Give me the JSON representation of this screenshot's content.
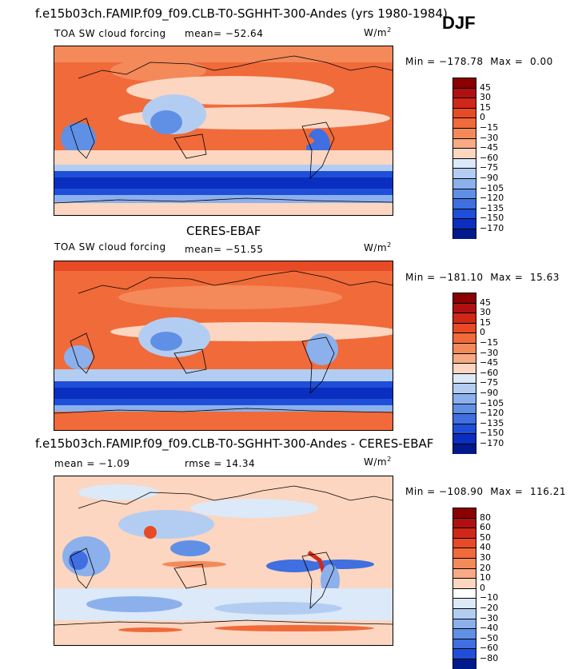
{
  "season": "DJF",
  "panels": [
    {
      "title": "f.e15b03ch.FAMIP.f09_f09.CLB-T0-SGHHT-300-Andes (yrs 1980-1984)",
      "variable": "TOA SW cloud forcing",
      "mean_label": "mean=",
      "mean": "−52.64",
      "units": "W/m",
      "units_exp": "2",
      "min_label": "Min =",
      "min": "−178.78",
      "max_label": "Max =",
      "max": "0.00",
      "colorbar_labels": [
        "45",
        "30",
        "15",
        "0",
        "−15",
        "−30",
        "−45",
        "−60",
        "−75",
        "−90",
        "−105",
        "−120",
        "−135",
        "−150",
        "−170"
      ]
    },
    {
      "title": "CERES-EBAF",
      "variable": "TOA SW cloud forcing",
      "mean_label": "mean=",
      "mean": "−51.55",
      "units": "W/m",
      "units_exp": "2",
      "min_label": "Min =",
      "min": "−181.10",
      "max_label": "Max =",
      "max": "15.63",
      "colorbar_labels": [
        "45",
        "30",
        "15",
        "0",
        "−15",
        "−30",
        "−45",
        "−60",
        "−75",
        "−90",
        "−105",
        "−120",
        "−135",
        "−150",
        "−170"
      ]
    },
    {
      "title": "f.e15b03ch.FAMIP.f09_f09.CLB-T0-SGHHT-300-Andes - CERES-EBAF",
      "mean_label": "mean =",
      "mean": "−1.09",
      "rmse_label": "rmse =",
      "rmse": "14.34",
      "units": "W/m",
      "units_exp": "2",
      "min_label": "Min =",
      "min": "−108.90",
      "max_label": "Max =",
      "max": "116.21",
      "colorbar_labels": [
        "80",
        "60",
        "50",
        "40",
        "30",
        "20",
        "10",
        "0",
        "−10",
        "−20",
        "−30",
        "−40",
        "−50",
        "−60",
        "−80"
      ]
    }
  ],
  "colors": {
    "fcst": [
      "#8b0000",
      "#b01010",
      "#d02818",
      "#e84a26",
      "#f06a3a",
      "#f4895a",
      "#f8aa84",
      "#fcd6c0",
      "#dbe9f8",
      "#b3cdf2",
      "#8bb0ec",
      "#6090e6",
      "#3f6fe0",
      "#1f4fd8",
      "#0a2fc0",
      "#001a8c"
    ],
    "diff": [
      "#8b0000",
      "#b01010",
      "#d02818",
      "#e84a26",
      "#f06a3a",
      "#f4895a",
      "#f8aa84",
      "#fcd6c0",
      "#ffffff",
      "#dbe9f8",
      "#b3cdf2",
      "#8bb0ec",
      "#6090e6",
      "#3f6fe0",
      "#1f4fd8",
      "#001a8c"
    ]
  }
}
